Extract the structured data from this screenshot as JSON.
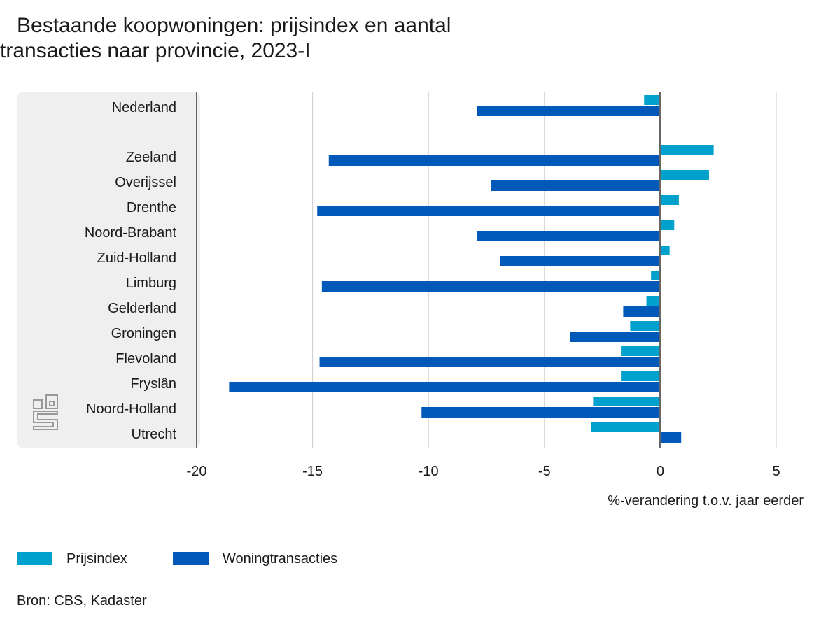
{
  "chart_data": {
    "type": "bar",
    "orientation": "horizontal",
    "title_lines": [
      "Bestaande koopwoningen: prijsindex en aantal",
      "transacties naar provincie, 2023-I"
    ],
    "xlabel": "%-verandering t.o.v. jaar eerder",
    "ylabel": "",
    "xlim": [
      -20,
      5
    ],
    "xticks": [
      -20,
      -15,
      -10,
      -5,
      0,
      5
    ],
    "xtick_labels": [
      "-20",
      "-15",
      "-10",
      "-5",
      "0",
      "5"
    ],
    "grid": true,
    "legend_position": "bottom-left",
    "categories": [
      "Nederland",
      "Zeeland",
      "Overijssel",
      "Drenthe",
      "Noord-Brabant",
      "Zuid-Holland",
      "Limburg",
      "Gelderland",
      "Groningen",
      "Flevoland",
      "Fryslân",
      "Noord-Holland",
      "Utrecht"
    ],
    "series": [
      {
        "name": "Prijsindex",
        "color": "#00a1cd",
        "values": [
          -0.7,
          2.3,
          2.1,
          0.8,
          0.6,
          0.4,
          -0.4,
          -0.6,
          -1.3,
          -1.7,
          -1.7,
          -2.9,
          -3.0
        ]
      },
      {
        "name": "Woningtransacties",
        "color": "#0058b8",
        "values": [
          -7.9,
          -14.3,
          -7.3,
          -14.8,
          -7.9,
          -6.9,
          -14.6,
          -1.6,
          -3.9,
          -14.7,
          -18.6,
          -10.3,
          0.9
        ]
      }
    ],
    "source": "Bron: CBS, Kadaster"
  },
  "logo": "cbs"
}
